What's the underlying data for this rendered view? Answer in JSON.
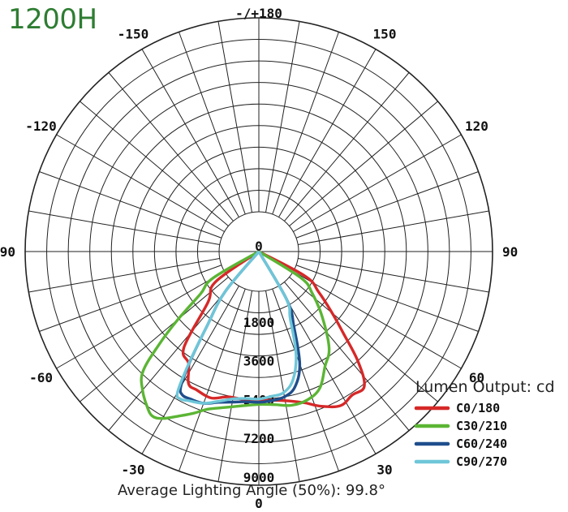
{
  "chart_data": {
    "type": "polar",
    "title": "1200H",
    "legend_title": "Lumen Output: cd",
    "legend_position": "bottom-right",
    "footer": "Average Lighting Angle (50%): 99.8°",
    "radial_ticks": [
      "0",
      "1800",
      "3600",
      "5400",
      "7200",
      "9000"
    ],
    "radial_values": [
      0,
      1800,
      3600,
      5400,
      7200,
      9000
    ],
    "angle_labels": [
      "-/+180",
      "150",
      "120",
      "90",
      "60",
      "30",
      "0",
      "-30",
      "-60",
      "-90",
      "-120",
      "-150"
    ],
    "angle_values": [
      180,
      150,
      120,
      90,
      60,
      30,
      0,
      -30,
      -60,
      -90,
      -120,
      -150
    ],
    "grid": true,
    "series": [
      {
        "name": "C0/180",
        "color": "#d62828",
        "points": [
          [
            -55,
            600
          ],
          [
            -45,
            1500
          ],
          [
            -38,
            3800
          ],
          [
            -32,
            4300
          ],
          [
            -28,
            5100
          ],
          [
            -24,
            5200
          ],
          [
            -18,
            5300
          ],
          [
            -12,
            5050
          ],
          [
            -6,
            5050
          ],
          [
            0,
            5050
          ],
          [
            6,
            5100
          ],
          [
            12,
            5250
          ],
          [
            17,
            5500
          ],
          [
            22,
            5900
          ],
          [
            28,
            6250
          ],
          [
            33,
            6100
          ],
          [
            38,
            6100
          ],
          [
            42,
            5050
          ],
          [
            46,
            3600
          ],
          [
            50,
            2600
          ],
          [
            56,
            1500
          ],
          [
            62,
            600
          ]
        ]
      },
      {
        "name": "C30/210",
        "color": "#5bb534",
        "points": [
          [
            -60,
            600
          ],
          [
            -54,
            1500
          ],
          [
            -50,
            3050
          ],
          [
            -47,
            4500
          ],
          [
            -44,
            5900
          ],
          [
            -40,
            6550
          ],
          [
            -36,
            7000
          ],
          [
            -33,
            7250
          ],
          [
            -30,
            7100
          ],
          [
            -26,
            6650
          ],
          [
            -22,
            6250
          ],
          [
            -18,
            5850
          ],
          [
            -12,
            5550
          ],
          [
            -6,
            5350
          ],
          [
            0,
            5250
          ],
          [
            6,
            5300
          ],
          [
            12,
            5450
          ],
          [
            18,
            5400
          ],
          [
            24,
            5100
          ],
          [
            30,
            4300
          ],
          [
            36,
            3700
          ],
          [
            44,
            2400
          ],
          [
            52,
            1300
          ],
          [
            58,
            450
          ]
        ]
      },
      {
        "name": "C60/240",
        "color": "#1f4e8c",
        "points": [
          [
            -40,
            600
          ],
          [
            -35,
            2300
          ],
          [
            -32,
            4200
          ],
          [
            -30,
            5400
          ],
          [
            -28,
            5700
          ],
          [
            -25,
            5700
          ],
          [
            -20,
            5650
          ],
          [
            -15,
            5400
          ],
          [
            -10,
            5250
          ],
          [
            -5,
            5150
          ],
          [
            0,
            5150
          ],
          [
            5,
            5100
          ],
          [
            10,
            5000
          ],
          [
            15,
            4650
          ],
          [
            20,
            3700
          ],
          [
            25,
            2000
          ],
          [
            30,
            800
          ]
        ]
      },
      {
        "name": "C90/270",
        "color": "#6ec6d8",
        "points": [
          [
            -40,
            600
          ],
          [
            -35,
            2300
          ],
          [
            -32,
            4300
          ],
          [
            -30,
            5700
          ],
          [
            -28,
            5900
          ],
          [
            -25,
            5800
          ],
          [
            -20,
            5650
          ],
          [
            -15,
            5350
          ],
          [
            -10,
            5100
          ],
          [
            -5,
            5000
          ],
          [
            0,
            5000
          ],
          [
            5,
            4900
          ],
          [
            10,
            4800
          ],
          [
            15,
            4300
          ],
          [
            20,
            3200
          ],
          [
            25,
            1600
          ],
          [
            30,
            700
          ]
        ]
      }
    ]
  }
}
